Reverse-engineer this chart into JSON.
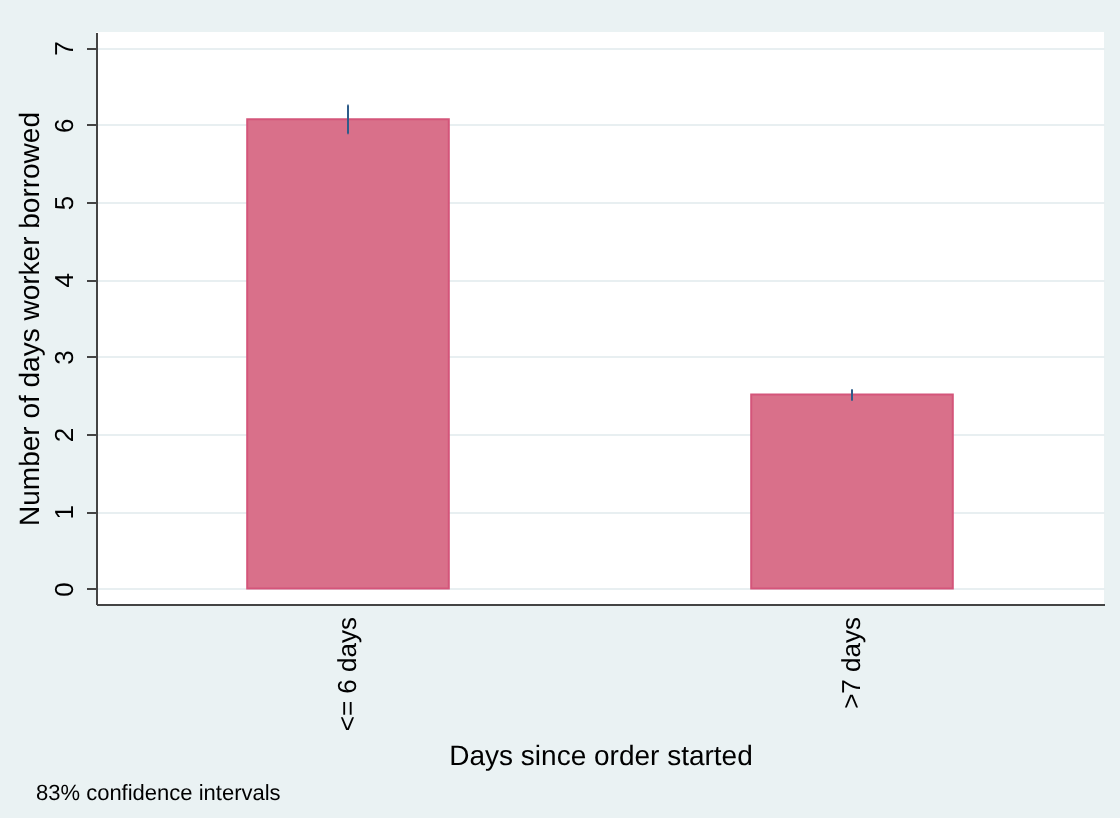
{
  "chart_data": {
    "type": "bar",
    "xlabel": "Days since order started",
    "ylabel": "Number of days worker borrowed",
    "categories": [
      "<= 6 days",
      ">7 days"
    ],
    "values": [
      6.07,
      2.51
    ],
    "errors": [
      [
        5.89,
        6.25
      ],
      [
        2.44,
        2.57
      ]
    ],
    "color": "#d9708a",
    "ylim": [
      -0.2,
      7.2
    ],
    "yticks": [
      0,
      1,
      2,
      3,
      4,
      5,
      6,
      7
    ],
    "grid": "y",
    "annotations": [
      "83% confidence intervals"
    ]
  }
}
